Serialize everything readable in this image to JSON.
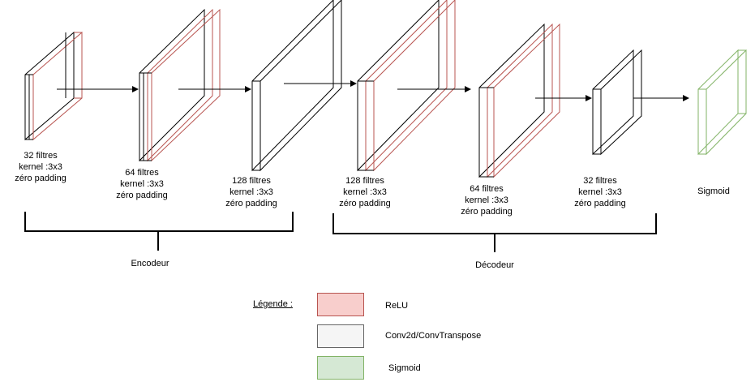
{
  "layers": [
    {
      "id": "conv1",
      "lines": [
        "32 filtres",
        "kernel :3x3",
        "zéro padding"
      ],
      "kind": "relu"
    },
    {
      "id": "conv2",
      "lines": [
        "64 filtres",
        "kernel :3x3",
        "zéro padding"
      ],
      "kind": "relu"
    },
    {
      "id": "conv3",
      "lines": [
        "128 filtres",
        "kernel :3x3",
        "zéro padding"
      ],
      "kind": "conv"
    },
    {
      "id": "deconv1",
      "lines": [
        "128 filtres",
        "kernel :3x3",
        "zéro padding"
      ],
      "kind": "relu"
    },
    {
      "id": "deconv2",
      "lines": [
        "64 filtres",
        "kernel :3x3",
        "zéro padding"
      ],
      "kind": "relu"
    },
    {
      "id": "deconv3",
      "lines": [
        "32 filtres",
        "kernel :3x3",
        "zéro padding"
      ],
      "kind": "conv"
    },
    {
      "id": "output",
      "lines": [
        "Sigmoid"
      ],
      "kind": "sigmoid"
    }
  ],
  "groups": {
    "encoder": "Encodeur",
    "decoder": "Décodeur"
  },
  "legend": {
    "title": "Légende :",
    "items": [
      {
        "label": "ReLU",
        "fill": "#f8cecc",
        "stroke": "#b85450"
      },
      {
        "label": "Conv2d/ConvTranspose",
        "fill": "#f5f5f5",
        "stroke": "#666666"
      },
      {
        "label": "Sigmoid",
        "fill": "#d5e8d4",
        "stroke": "#82b366"
      }
    ]
  },
  "colors": {
    "relu": "#b85450",
    "conv": "#000000",
    "sigmoid": "#82b366"
  }
}
